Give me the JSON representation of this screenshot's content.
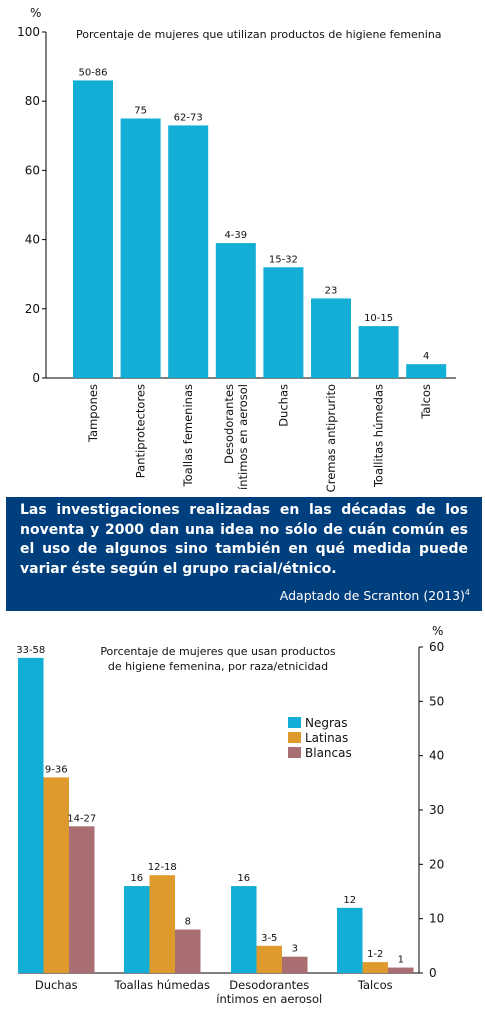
{
  "chart_data": [
    {
      "type": "bar",
      "title": "Porcentaje de mujeres que utilizan productos de higiene femenina",
      "unit": "%",
      "ylim": [
        0,
        100
      ],
      "yticks": [
        "0",
        "20",
        "40",
        "60",
        "80",
        "100"
      ],
      "categories": [
        "Tampones",
        "Pantiprotectores",
        "Toallas femeninas",
        "Desodorantes\níntimos en aerosol",
        "Duchas",
        "Cremas antiprurito",
        "Toallitas húmedas",
        "Talcos"
      ],
      "values": [
        86,
        75,
        73,
        39,
        32,
        23,
        15,
        4
      ],
      "data_labels": [
        "50-86",
        "75",
        "62-73",
        "4-39",
        "15-32",
        "23",
        "10-15",
        "4"
      ],
      "color": "#12aed6"
    },
    {
      "type": "bar",
      "title": "Porcentaje de mujeres que usan productos\nde higiene femenina, por raza/etnicidad",
      "unit": "%",
      "ylim": [
        0,
        60
      ],
      "yticks": [
        "0",
        "10",
        "20",
        "30",
        "40",
        "50",
        "60"
      ],
      "categories": [
        "Duchas",
        "Toallas húmedas",
        "Desodorantes\níntimos en aerosol",
        "Talcos"
      ],
      "series": [
        {
          "name": "Negras",
          "color": "#12aed6",
          "values": [
            58,
            16,
            16,
            12
          ],
          "labels": [
            "33-58",
            "16",
            "16",
            "12"
          ]
        },
        {
          "name": "Latinas",
          "color": "#de9a2c",
          "values": [
            36,
            18,
            5,
            2
          ],
          "labels": [
            "9-36",
            "12-18",
            "3-5",
            "1-2"
          ]
        },
        {
          "name": "Blancas",
          "color": "#a86e72",
          "values": [
            27,
            8,
            3,
            1
          ],
          "labels": [
            "14-27",
            "8",
            "3",
            "1"
          ]
        }
      ],
      "legend_position": "top-right"
    }
  ],
  "info_box": {
    "text": "Las investigaciones realizadas en las décadas de los noventa y 2000 dan una idea no sólo de cuán común es el uso de algunos sino también en qué medida puede variar éste según el grupo racial/étnico.",
    "source": "Adaptado de Scranton (2013)",
    "source_ref": "4"
  }
}
